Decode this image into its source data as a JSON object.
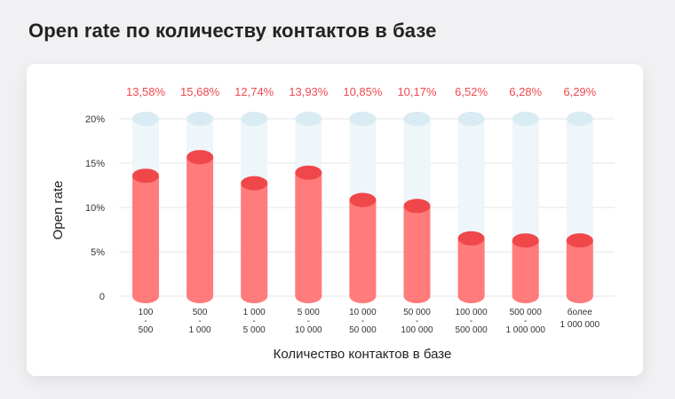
{
  "title": "Open rate по количеству контактов в базе",
  "chart_data": {
    "type": "bar",
    "title": "Open rate по количеству контактов в базе",
    "xlabel": "Количество контактов в базе",
    "ylabel": "Open rate",
    "ylim": [
      0,
      20
    ],
    "yticks": [
      {
        "value": 0,
        "label": "0"
      },
      {
        "value": 5,
        "label": "5%"
      },
      {
        "value": 10,
        "label": "10%"
      },
      {
        "value": 15,
        "label": "15%"
      },
      {
        "value": 20,
        "label": "20%"
      }
    ],
    "categories": [
      [
        "100",
        "-",
        "500"
      ],
      [
        "500",
        "-",
        "1 000"
      ],
      [
        "1 000",
        "-",
        "5 000"
      ],
      [
        "5 000",
        "-",
        "10 000"
      ],
      [
        "10 000",
        "-",
        "50 000"
      ],
      [
        "50 000",
        "-",
        "100 000"
      ],
      [
        "100 000",
        "-",
        "500 000"
      ],
      [
        "500 000",
        "-",
        "1 000 000"
      ],
      [
        "более",
        "1 000 000"
      ]
    ],
    "values": [
      13.58,
      15.68,
      12.74,
      13.93,
      10.85,
      10.17,
      6.52,
      6.28,
      6.29
    ],
    "value_labels": [
      "13,58%",
      "15,68%",
      "12,74%",
      "13,93%",
      "10,85%",
      "10,17%",
      "6,52%",
      "6,28%",
      "6,29%"
    ],
    "grid": true,
    "legend": "none",
    "colors": {
      "bar": "#ff7b7c",
      "bar_top": "#f0474b",
      "track": "#eef6fa",
      "track_top": "#d9ebf3",
      "value_label": "#ee4a4f",
      "grid": "#e6e6e6"
    }
  }
}
